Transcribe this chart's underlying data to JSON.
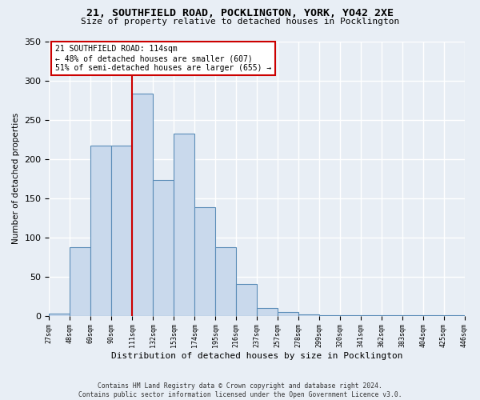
{
  "title": "21, SOUTHFIELD ROAD, POCKLINGTON, YORK, YO42 2XE",
  "subtitle": "Size of property relative to detached houses in Pocklington",
  "xlabel": "Distribution of detached houses by size in Pocklington",
  "ylabel": "Number of detached properties",
  "bar_values": [
    3,
    87,
    217,
    217,
    283,
    173,
    232,
    138,
    87,
    40,
    10,
    5,
    2,
    1,
    1,
    1,
    1,
    1,
    1,
    1
  ],
  "bar_labels": [
    "27sqm",
    "48sqm",
    "69sqm",
    "90sqm",
    "111sqm",
    "132sqm",
    "153sqm",
    "174sqm",
    "195sqm",
    "216sqm",
    "237sqm",
    "257sqm",
    "278sqm",
    "299sqm",
    "320sqm",
    "341sqm",
    "362sqm",
    "383sqm",
    "404sqm",
    "425sqm",
    "446sqm"
  ],
  "bar_color": "#c9d9ec",
  "bar_edge_color": "#5b8db8",
  "vline_x": 4,
  "vline_color": "#cc0000",
  "annotation_text": "21 SOUTHFIELD ROAD: 114sqm\n← 48% of detached houses are smaller (607)\n51% of semi-detached houses are larger (655) →",
  "annotation_box_color": "white",
  "annotation_box_edge": "#cc0000",
  "footer": "Contains HM Land Registry data © Crown copyright and database right 2024.\nContains public sector information licensed under the Open Government Licence v3.0.",
  "background_color": "#e8eef5",
  "ylim": [
    0,
    350
  ],
  "grid_color": "white"
}
